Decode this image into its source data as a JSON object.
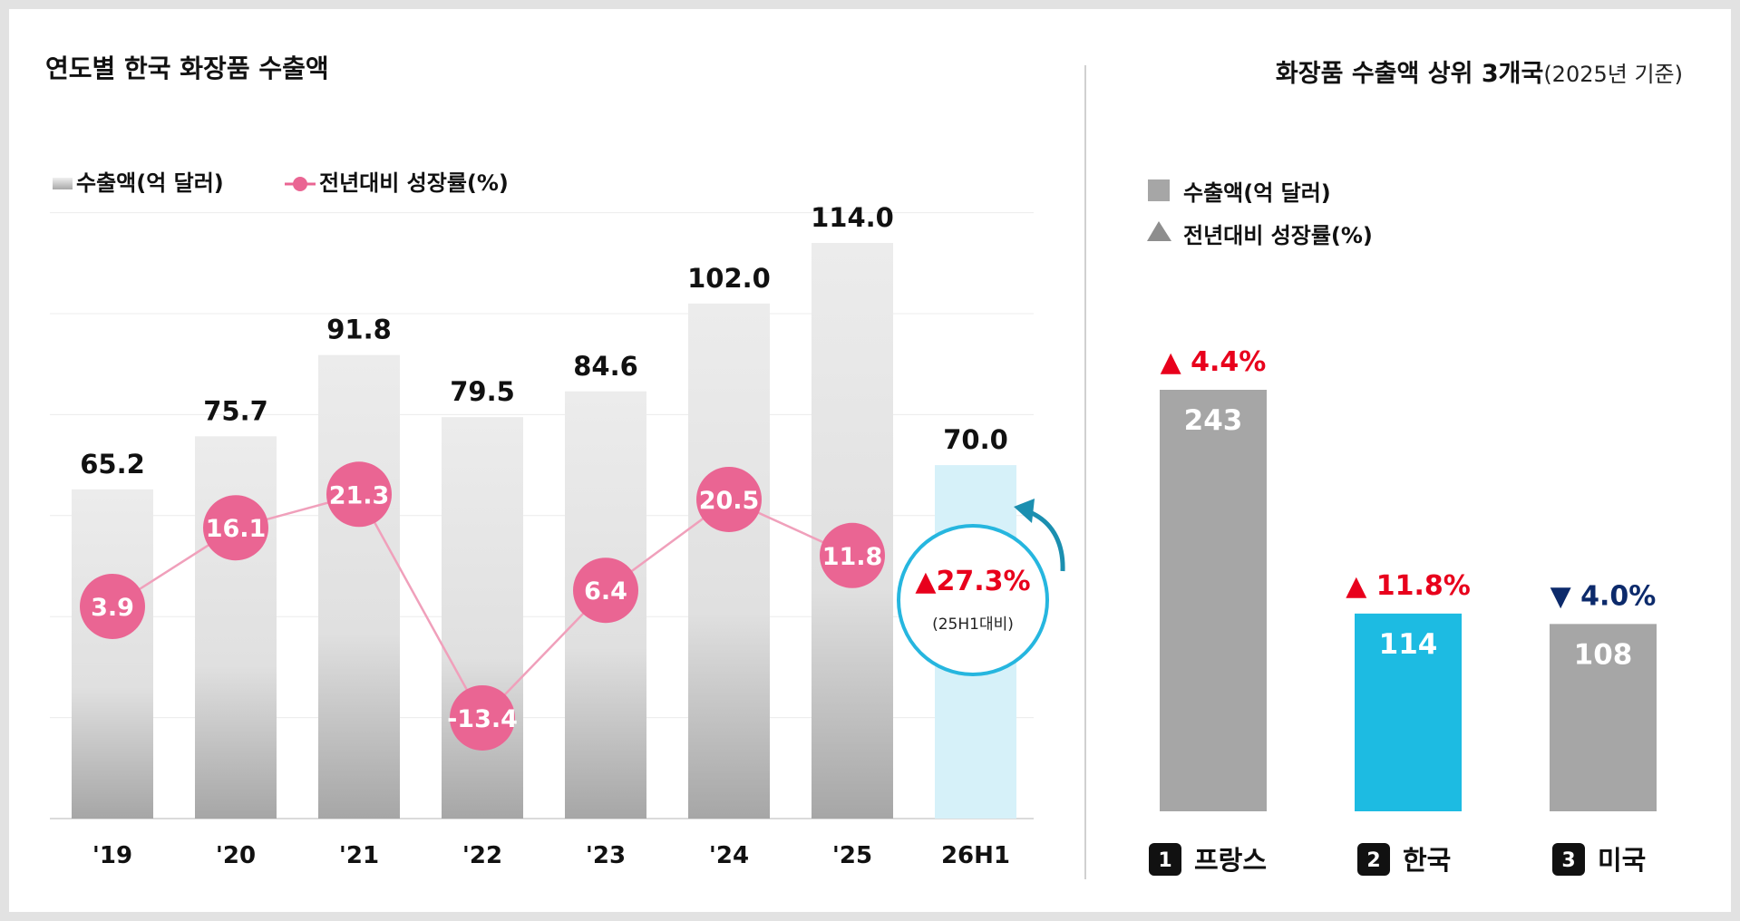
{
  "left_chart": {
    "title": "연도별 한국 화장품 수출액",
    "legend_bar": "수출액(억 달러)",
    "legend_line": "전년대비 성장률(%)",
    "callout_value": "▲27.3%",
    "callout_note": "(25H1대비)",
    "colors": {
      "bar_top": "#eaeaea",
      "bar_bottom": "#a8a8a8",
      "highlight_bar": "#d6f1f9",
      "line": "#f0a0bb",
      "marker": "#ea6593",
      "callout_ring": "#26b6df",
      "up": "#e8001c"
    }
  },
  "right_chart": {
    "title": "화장품 수출액 상위 3개국",
    "title_note": "(2025년 기준)",
    "legend_bar": "수출액(억 달러)",
    "legend_growth": "전년대비 성장률(%)",
    "colors": {
      "gray": "#a6a6a6",
      "korea": "#1dbbe2",
      "up": "#e8001c",
      "down": "#0c2a6b",
      "rank_box": "#111111"
    }
  },
  "chart_data": [
    {
      "type": "bar",
      "title": "연도별 한국 화장품 수출액",
      "categories": [
        "'19",
        "'20",
        "'21",
        "'22",
        "'23",
        "'24",
        "'25",
        "26H1"
      ],
      "series": [
        {
          "name": "수출액(억 달러)",
          "type": "bar",
          "values": [
            65.2,
            75.7,
            91.8,
            79.5,
            84.6,
            102.0,
            114.0,
            70.0
          ],
          "labels": [
            "65.2",
            "75.7",
            "91.8",
            "79.5",
            "84.6",
            "102.0",
            "114.0",
            "70.0"
          ]
        },
        {
          "name": "전년대비 성장률(%)",
          "type": "line",
          "values": [
            3.9,
            16.1,
            21.3,
            -13.4,
            6.4,
            20.5,
            11.8,
            null
          ],
          "labels": [
            "3.9",
            "16.1",
            "21.3",
            "-13.4",
            "6.4",
            "20.5",
            "11.8",
            ""
          ]
        }
      ],
      "annotation": "▲27.3% (25H1대비)",
      "ylim": [
        0,
        120
      ],
      "line_ylim": [
        -20,
        40
      ],
      "grid": true,
      "legend": "top-left"
    },
    {
      "type": "bar",
      "title": "화장품 수출액 상위 3개국(2025년 기준)",
      "categories": [
        "프랑스",
        "한국",
        "미국"
      ],
      "ranks": [
        "1",
        "2",
        "3"
      ],
      "series": [
        {
          "name": "수출액(억 달러)",
          "values": [
            243,
            114,
            108
          ],
          "labels": [
            "243",
            "114",
            "108"
          ]
        },
        {
          "name": "전년대비 성장률(%)",
          "values": [
            4.4,
            11.8,
            -4.0
          ],
          "labels": [
            "▲ 4.4%",
            "▲ 11.8%",
            "▼ 4.0%"
          ]
        }
      ],
      "ylim": [
        0,
        280
      ],
      "grid": false,
      "legend": "top-left"
    }
  ]
}
